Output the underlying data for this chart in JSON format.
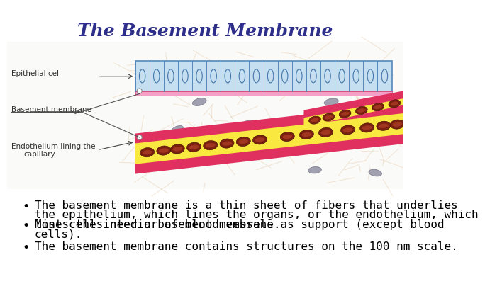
{
  "title": "The Basement Membrane",
  "title_color": "#2e2e8b",
  "title_fontsize": 18,
  "bg_color": "#ffffff",
  "bullet_texts": [
    [
      "The basement membrane is a thin sheet of fibers that underlies",
      "the epithelium, which lines the organs, or the endothelium, which",
      "lines the interior of blood vessels."
    ],
    [
      "Most cells need a basement membrane as support (except blood",
      "cells)."
    ],
    [
      "The basement membrane contains structures on the 100 nm scale."
    ]
  ],
  "bullet_color": "#000000",
  "bullet_fontsize": 11.5,
  "epithelial_cell_color": "#c5dff0",
  "epithelial_border_color": "#5588bb",
  "basement_membrane_pink": "#f5a0c8",
  "capillary_red": "#e03060",
  "capillary_pink": "#f0a0c0",
  "capillary_yellow": "#f8e840",
  "rbc_dark": "#7a2010",
  "rbc_mid": "#a03520",
  "fiber_color": "#d4a870",
  "nucleus_color": "#a0a0b0",
  "nucleus_border": "#808090",
  "label_color": "#333333",
  "label_fontsize": 7.5,
  "white": "#ffffff",
  "connective_bg": "#fafaf8"
}
